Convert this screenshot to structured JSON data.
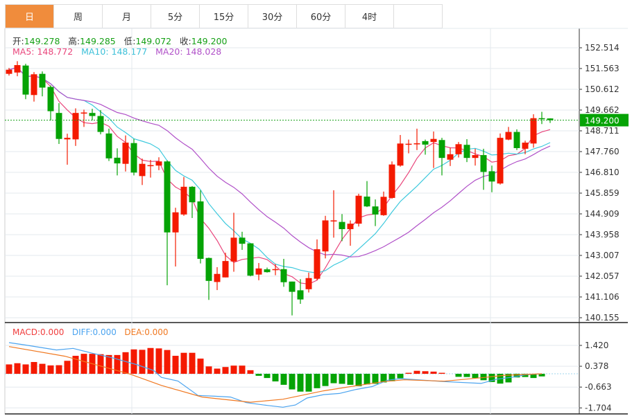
{
  "tabs": [
    {
      "label": "日",
      "active": true
    },
    {
      "label": "周"
    },
    {
      "label": "月"
    },
    {
      "label": "5分"
    },
    {
      "label": "15分"
    },
    {
      "label": "30分"
    },
    {
      "label": "60分"
    },
    {
      "label": "4时"
    },
    {
      "label": ""
    }
  ],
  "ohlc_info": {
    "open_label": "开:",
    "open": "149.278",
    "high_label": "高:",
    "high": "149.285",
    "low_label": "低:",
    "low": "149.072",
    "close_label": "收:",
    "close": "149.200"
  },
  "ma_info": {
    "ma5": "MA5: 148.772",
    "ma10": "MA10: 148.177",
    "ma20": "MA20: 148.028"
  },
  "macd_info": {
    "macd": "MACD:0.000",
    "diff": "DIFF:0.000",
    "dea": "DEA:0.000"
  },
  "colors": {
    "up": "#f41a00",
    "down": "#05a305",
    "ma5": "#e9467c",
    "ma10": "#3dc9dd",
    "ma20": "#b050c8",
    "diff": "#4aa3ef",
    "dea": "#f07820",
    "accent": "#f08c3c"
  },
  "chart_data": [
    {
      "type": "candlestick",
      "title": "",
      "ylim": [
        140.155,
        152.514
      ],
      "y_ticks": [
        "152.514",
        "151.563",
        "150.612",
        "149.662",
        "148.711",
        "147.760",
        "146.810",
        "145.859",
        "144.909",
        "143.958",
        "143.007",
        "142.057",
        "141.106",
        "140.155"
      ],
      "current_price": "149.200",
      "ma_periods": [
        5,
        10,
        20
      ],
      "candles": [
        [
          151.32,
          151.51,
          151.59,
          151.24
        ],
        [
          151.38,
          151.72,
          151.9,
          151.21
        ],
        [
          151.7,
          150.37,
          151.78,
          150.16
        ],
        [
          150.35,
          151.3,
          151.4,
          150.05
        ],
        [
          151.32,
          150.69,
          151.43,
          150.29
        ],
        [
          150.72,
          149.61,
          150.79,
          149.19
        ],
        [
          149.53,
          148.34,
          149.98,
          148.11
        ],
        [
          148.32,
          148.39,
          148.58,
          147.16
        ],
        [
          148.32,
          149.53,
          149.74,
          148.02
        ],
        [
          149.5,
          149.55,
          149.68,
          148.89
        ],
        [
          149.53,
          149.39,
          149.72,
          149.19
        ],
        [
          149.39,
          148.66,
          149.66,
          148.55
        ],
        [
          148.59,
          147.45,
          148.81,
          147.33
        ],
        [
          147.48,
          147.22,
          147.91,
          146.67
        ],
        [
          147.2,
          148.17,
          148.5,
          146.85
        ],
        [
          148.15,
          146.8,
          148.34,
          146.67
        ],
        [
          146.64,
          147.2,
          147.44,
          146.23
        ],
        [
          147.12,
          147.14,
          147.38,
          146.57
        ],
        [
          147.12,
          147.31,
          147.5,
          146.91
        ],
        [
          147.31,
          144.06,
          147.36,
          141.64
        ],
        [
          144.06,
          144.98,
          145.19,
          142.5
        ],
        [
          144.88,
          146.15,
          146.6,
          144.82
        ],
        [
          146.15,
          145.44,
          146.18,
          144.72
        ],
        [
          145.48,
          142.85,
          145.99,
          142.64
        ],
        [
          142.89,
          141.84,
          142.91,
          140.97
        ],
        [
          141.79,
          142.16,
          142.47,
          141.42
        ],
        [
          142.0,
          142.75,
          143.13,
          142.0
        ],
        [
          142.73,
          143.82,
          144.96,
          142.26
        ],
        [
          143.82,
          143.54,
          144.09,
          143.26
        ],
        [
          143.56,
          142.08,
          143.56,
          142.05
        ],
        [
          142.13,
          142.41,
          142.66,
          141.87
        ],
        [
          142.37,
          142.24,
          142.45,
          142.22
        ],
        [
          142.36,
          142.38,
          142.61,
          142.1
        ],
        [
          142.38,
          141.78,
          142.85,
          141.57
        ],
        [
          141.81,
          141.34,
          141.81,
          140.26
        ],
        [
          141.41,
          140.99,
          141.92,
          140.79
        ],
        [
          141.46,
          141.97,
          142.22,
          141.31
        ],
        [
          141.94,
          143.29,
          143.74,
          141.87
        ],
        [
          143.19,
          144.61,
          144.82,
          142.87
        ],
        [
          144.6,
          144.61,
          145.99,
          143.82
        ],
        [
          144.54,
          144.21,
          144.9,
          143.66
        ],
        [
          144.21,
          144.46,
          144.61,
          143.45
        ],
        [
          144.46,
          145.74,
          145.83,
          144.33
        ],
        [
          145.7,
          145.25,
          146.41,
          145.22
        ],
        [
          145.25,
          144.88,
          145.57,
          144.35
        ],
        [
          144.85,
          145.69,
          145.93,
          144.82
        ],
        [
          145.64,
          147.17,
          147.31,
          145.6
        ],
        [
          147.12,
          148.13,
          148.52,
          147.07
        ],
        [
          148.09,
          148.12,
          148.31,
          147.68
        ],
        [
          148.13,
          148.14,
          148.81,
          147.83
        ],
        [
          148.24,
          148.08,
          148.31,
          147.62
        ],
        [
          148.2,
          148.34,
          148.68,
          147.01
        ],
        [
          148.29,
          147.47,
          148.39,
          146.67
        ],
        [
          147.39,
          147.64,
          147.94,
          147.1
        ],
        [
          147.64,
          148.1,
          148.2,
          147.49
        ],
        [
          148.07,
          147.47,
          148.33,
          147.28
        ],
        [
          147.47,
          147.6,
          147.89,
          147.12
        ],
        [
          147.6,
          146.83,
          147.89,
          146.01
        ],
        [
          146.86,
          146.39,
          147.12,
          145.9
        ],
        [
          146.3,
          148.39,
          148.59,
          146.25
        ],
        [
          148.31,
          148.66,
          148.89,
          148.28
        ],
        [
          148.66,
          147.92,
          148.78,
          147.83
        ],
        [
          147.89,
          148.17,
          148.26,
          147.64
        ],
        [
          148.13,
          149.29,
          149.47,
          147.94
        ],
        [
          149.29,
          149.26,
          149.58,
          149.02
        ],
        [
          149.278,
          149.2,
          149.285,
          149.072
        ]
      ]
    },
    {
      "type": "bar+line",
      "title": "MACD",
      "ylim": [
        -1.95,
        2.0
      ],
      "y_ticks": [
        "1.420",
        "0.378",
        "-0.663",
        "-1.704"
      ],
      "macd": [
        0.47,
        0.53,
        0.47,
        0.59,
        0.5,
        0.42,
        0.43,
        0.65,
        0.9,
        1.0,
        1.0,
        0.98,
        0.94,
        0.94,
        1.08,
        1.22,
        1.2,
        1.29,
        1.27,
        1.19,
        0.9,
        1.05,
        1.05,
        0.76,
        0.37,
        0.26,
        0.34,
        0.41,
        0.41,
        0.18,
        -0.1,
        -0.21,
        -0.38,
        -0.55,
        -0.78,
        -0.89,
        -0.89,
        -0.72,
        -0.61,
        -0.47,
        -0.5,
        -0.55,
        -0.62,
        -0.53,
        -0.5,
        -0.43,
        -0.37,
        -0.22,
        0.05,
        0.15,
        0.13,
        0.11,
        0.05,
        0,
        -0.15,
        -0.16,
        -0.21,
        -0.32,
        -0.41,
        -0.49,
        -0.43,
        -0.18,
        -0.16,
        -0.21,
        -0.13,
        0
      ],
      "diff": [
        [
          0,
          1.56
        ],
        [
          1.8,
          1.45
        ],
        [
          5.7,
          1.19
        ],
        [
          7.7,
          1.27
        ],
        [
          10.1,
          1.02
        ],
        [
          12.5,
          0.79
        ],
        [
          15.4,
          0.45
        ],
        [
          17.4,
          0.16
        ],
        [
          18.3,
          -0.18
        ],
        [
          20.3,
          -0.36
        ],
        [
          22.7,
          -1.08
        ],
        [
          24.7,
          -1.12
        ],
        [
          26.6,
          -1.16
        ],
        [
          28.5,
          -1.44
        ],
        [
          31,
          -1.58
        ],
        [
          32.9,
          -1.67
        ],
        [
          34.4,
          -1.56
        ],
        [
          35.8,
          -1.21
        ],
        [
          37.8,
          -1.04
        ],
        [
          39.7,
          -0.98
        ],
        [
          41.7,
          -0.78
        ],
        [
          43.6,
          -0.64
        ],
        [
          45.5,
          -0.32
        ],
        [
          47,
          -0.24
        ],
        [
          52.3,
          -0.39
        ],
        [
          56.7,
          -0.48
        ],
        [
          58.6,
          -0.27
        ],
        [
          60.6,
          -0.16
        ],
        [
          62,
          -0.05
        ],
        [
          64,
          0
        ]
      ],
      "dea": [
        [
          0,
          1.36
        ],
        [
          6.7,
          0.88
        ],
        [
          14.5,
          -0.01
        ],
        [
          18.3,
          -0.58
        ],
        [
          23.2,
          -1.16
        ],
        [
          29,
          -1.42
        ],
        [
          32.9,
          -1.27
        ],
        [
          37.8,
          -0.85
        ],
        [
          40.7,
          -0.66
        ],
        [
          45,
          -0.39
        ],
        [
          47.5,
          -0.3
        ],
        [
          52.3,
          -0.37
        ],
        [
          57.2,
          -0.18
        ],
        [
          59.6,
          -0.07
        ],
        [
          64,
          0
        ]
      ]
    }
  ]
}
